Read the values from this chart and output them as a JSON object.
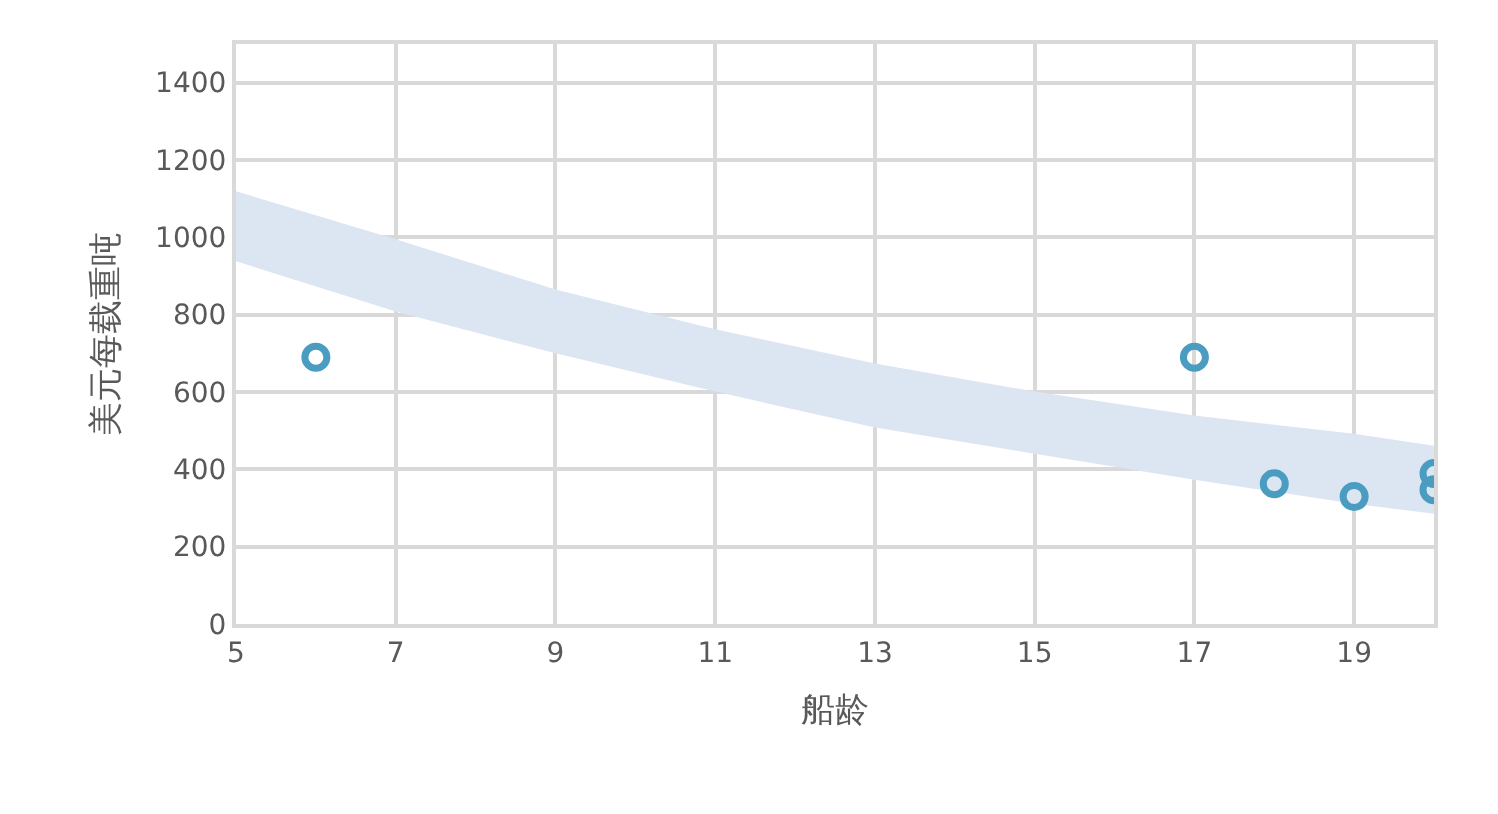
{
  "chart_data": {
    "type": "scatter",
    "xlabel": "船龄",
    "ylabel": "美元每载重吨",
    "xlim": [
      5,
      20
    ],
    "xticks": [
      5,
      7,
      9,
      11,
      13,
      15,
      17,
      19
    ],
    "ylim": [
      0,
      1500
    ],
    "yticks": [
      0,
      200,
      400,
      600,
      800,
      1000,
      1200,
      1400
    ],
    "grid": true,
    "marker": "circle",
    "series": [
      {
        "type": "area",
        "color": "#dce6f2",
        "x": [
          5,
          7,
          9,
          11,
          13,
          15,
          17,
          19,
          20
        ],
        "values": [
          null,
          null,
          null,
          null,
          null,
          null,
          null,
          null,
          null
        ],
        "lower": [
          938,
          808,
          700,
          601,
          508,
          440,
          373,
          311,
          285
        ],
        "upper": [
          1119,
          995,
          865,
          762,
          674,
          601,
          539,
          492,
          461
        ]
      },
      {
        "color": "#4a9cc0",
        "x": [
          6,
          17,
          18,
          19,
          20,
          20
        ],
        "values": [
          690,
          690,
          363,
          330,
          389,
          347
        ]
      }
    ]
  }
}
